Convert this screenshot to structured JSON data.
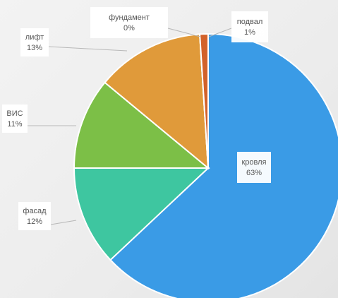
{
  "chart_data": {
    "type": "pie",
    "title": "",
    "slices": [
      {
        "label": "кровля",
        "value": 63,
        "value_label": "63%",
        "color": "#3a9be6"
      },
      {
        "label": "фасад",
        "value": 12,
        "value_label": "12%",
        "color": "#3ec6a0"
      },
      {
        "label": "ВИС",
        "value": 11,
        "value_label": "11%",
        "color": "#7cbf47"
      },
      {
        "label": "лифт",
        "value": 13,
        "value_label": "13%",
        "color": "#e09a3a"
      },
      {
        "label": "фундамент",
        "value": 0,
        "value_label": "0%",
        "color": "#eeeeee"
      },
      {
        "label": "подвал",
        "value": 1,
        "value_label": "1%",
        "color": "#d2622a"
      }
    ],
    "start_angle_deg": 0,
    "direction": "clockwise",
    "legend": "none"
  }
}
